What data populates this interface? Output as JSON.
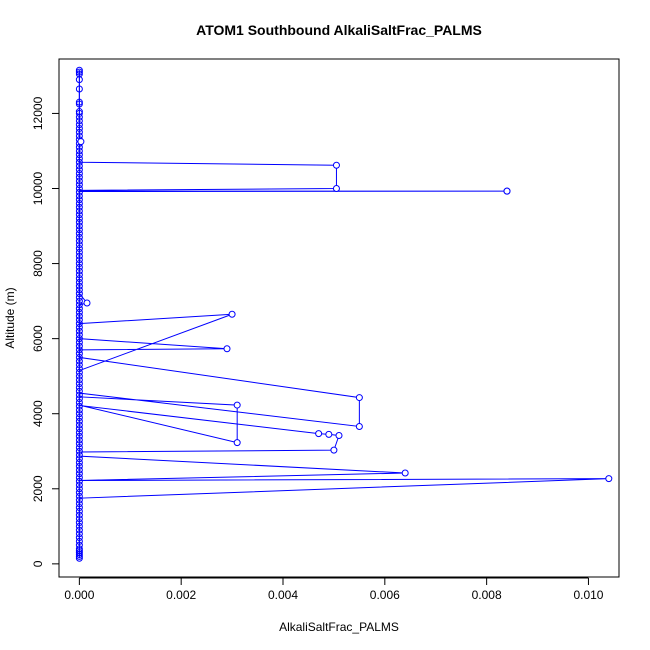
{
  "chart_data": {
    "type": "line",
    "title": "ATOM1 Southbound AlkaliSaltFrac_PALMS",
    "xlabel": "AlkaliSaltFrac_PALMS",
    "ylabel": "Altitude (m)",
    "xlim": [
      -0.0004,
      0.0106
    ],
    "ylim": [
      -350,
      13450
    ],
    "xticks": [
      0.0,
      0.002,
      0.004,
      0.006,
      0.008,
      0.01
    ],
    "xtick_labels": [
      "0.000",
      "0.002",
      "0.004",
      "0.006",
      "0.008",
      "0.010"
    ],
    "yticks": [
      0,
      2000,
      4000,
      6000,
      8000,
      10000,
      12000
    ],
    "ytick_labels": [
      "0",
      "2000",
      "4000",
      "6000",
      "8000",
      "10000",
      "12000"
    ],
    "grid": false,
    "color": "#0000ff",
    "series": [
      {
        "x": [
          0,
          0,
          0,
          0,
          0,
          0,
          0,
          0,
          0,
          0,
          0,
          0,
          3e-05,
          0,
          0,
          0,
          0,
          0,
          0.00505,
          0.00505,
          0,
          0,
          0.0084,
          0.0084,
          0,
          0,
          0,
          0,
          0,
          0,
          0,
          0,
          0,
          0,
          0,
          0,
          0,
          0.00015,
          0,
          0,
          0,
          0.003,
          0,
          0,
          0.0029,
          0,
          0,
          0.0055,
          0.0055,
          0,
          0,
          0.0031,
          0.0031,
          0,
          0,
          0.0047,
          0.0049,
          0.0051,
          0.005,
          0,
          0,
          0.0064,
          0,
          0.0104,
          0,
          0,
          0,
          0,
          0,
          0
        ],
        "y": [
          13150,
          13100,
          13050,
          12850,
          12650,
          12300,
          12050,
          11900,
          11800,
          11700,
          11500,
          11400,
          11250,
          11100,
          11000,
          10900,
          10800,
          10700,
          10620,
          10000,
          9950,
          9930,
          9930,
          9930,
          9920,
          9800,
          9600,
          9400,
          9250,
          9000,
          8800,
          8600,
          8400,
          8200,
          8000,
          7800,
          7200,
          6950,
          6900,
          6700,
          5150,
          6650,
          6400,
          6000,
          5730,
          5700,
          5500,
          4430,
          3660,
          4550,
          4450,
          4230,
          3230,
          4230,
          4220,
          3470,
          3450,
          3420,
          3030,
          2980,
          2870,
          2420,
          2220,
          2270,
          1750,
          1500,
          1350,
          1200,
          1000,
          200
        ]
      }
    ],
    "scatter_points": {
      "x": [
        0.0084,
        0.0084,
        0.00505,
        0.00505,
        0.00015,
        0.003,
        0.0029,
        0.0055,
        0.0055,
        0.0031,
        0.0031,
        0.0047,
        0.0049,
        0.0051,
        0.005,
        0.0064,
        0.0104,
        3e-05
      ],
      "y": [
        9930,
        9930,
        10620,
        10000,
        6950,
        6650,
        5730,
        4430,
        3660,
        4230,
        3230,
        3470,
        3450,
        3420,
        3030,
        2420,
        2270,
        11250
      ]
    },
    "near_zero_altitudes": [
      150,
      200,
      250,
      300,
      350,
      400,
      500,
      600,
      700,
      800,
      900,
      1000,
      1100,
      1200,
      1300,
      1400,
      1500,
      1600,
      1700,
      1800,
      1900,
      2000,
      2100,
      2200,
      2300,
      2400,
      2500,
      2600,
      2700,
      2800,
      2900,
      3000,
      3100,
      3200,
      3300,
      3400,
      3500,
      3600,
      3700,
      3800,
      3900,
      4000,
      4100,
      4200,
      4300,
      4400,
      4500,
      4600,
      4700,
      4800,
      4900,
      5000,
      5100,
      5200,
      5300,
      5400,
      5500,
      5600,
      5700,
      5800,
      5900,
      6000,
      6100,
      6200,
      6300,
      6400,
      6500,
      6600,
      6700,
      6800,
      6900,
      7000,
      7100,
      7200,
      7300,
      7400,
      7500,
      7600,
      7700,
      7800,
      7900,
      8000,
      8100,
      8200,
      8300,
      8400,
      8500,
      8600,
      8700,
      8800,
      8900,
      9000,
      9100,
      9200,
      9300,
      9400,
      9500,
      9600,
      9700,
      9800,
      9900,
      10000,
      10100,
      10200,
      10300,
      10400,
      10500,
      10600,
      10700,
      10800,
      10900,
      11000,
      11100,
      11200,
      11300,
      11400,
      11500,
      11600,
      11700,
      11800,
      11900,
      12000,
      12050,
      12250,
      12300,
      12650,
      12900,
      13050,
      13100,
      13150
    ]
  }
}
